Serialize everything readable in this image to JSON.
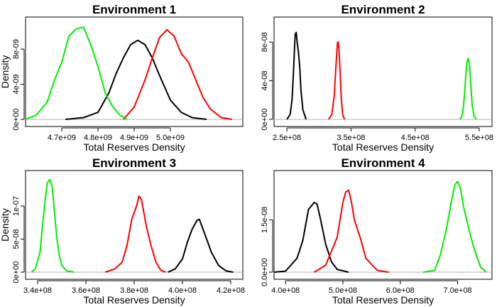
{
  "chart_data": [
    {
      "type": "line",
      "title": "Environment 1",
      "xlabel": "Total Reserves Density",
      "ylabel": "Density",
      "xlim": [
        4600000000.0,
        5200000000.0
      ],
      "ylim": [
        0,
        1.1e-08
      ],
      "xticks": [
        4700000000.0,
        4800000000.0,
        4900000000.0,
        5000000000.0
      ],
      "xtick_labels": [
        "4.7e+09",
        "4.8e+09",
        "4.9e+09",
        "5.0e+09"
      ],
      "yticks": [
        0,
        4e-09,
        8e-09
      ],
      "ytick_labels": [
        "0e+00",
        "4e-09",
        "8e-09"
      ],
      "series": [
        {
          "color": "#000000",
          "x": [
            4710000000.0,
            4760000000.0,
            4800000000.0,
            4830000000.0,
            4850000000.0,
            4870000000.0,
            4890000000.0,
            4910000000.0,
            4930000000.0,
            4950000000.0,
            4970000000.0,
            5000000000.0,
            5030000000.0,
            5060000000.0,
            5100000000.0
          ],
          "y": [
            0,
            2e-10,
            8e-10,
            3e-09,
            5.2e-09,
            7e-09,
            8.5e-09,
            9e-09,
            8.5e-09,
            7e-09,
            5e-09,
            2.2e-09,
            8e-10,
            2e-10,
            0
          ]
        },
        {
          "color": "#ff0000",
          "x": [
            4870000000.0,
            4900000000.0,
            4930000000.0,
            4950000000.0,
            4970000000.0,
            4990000000.0,
            5010000000.0,
            5030000000.0,
            5050000000.0,
            5070000000.0,
            5090000000.0,
            5110000000.0,
            5140000000.0,
            5170000000.0
          ],
          "y": [
            0,
            1.4e-09,
            4.5e-09,
            7e-09,
            9.3e-09,
            1.02e-08,
            9.5e-09,
            7.5e-09,
            6.5e-09,
            4.5e-09,
            2.5e-09,
            1.2e-09,
            2e-10,
            0
          ]
        },
        {
          "color": "#00ee00",
          "x": [
            4600000000.0,
            4630000000.0,
            4660000000.0,
            4680000000.0,
            4700000000.0,
            4720000000.0,
            4740000000.0,
            4760000000.0,
            4780000000.0,
            4800000000.0,
            4820000000.0,
            4840000000.0,
            4860000000.0,
            4880000000.0
          ],
          "y": [
            0,
            5e-10,
            2e-09,
            4.5e-09,
            6.5e-09,
            9.5e-09,
            1.03e-08,
            1.05e-08,
            8.5e-09,
            6e-09,
            3e-09,
            1.5e-09,
            5e-10,
            0
          ]
        }
      ]
    },
    {
      "type": "line",
      "title": "Environment 2",
      "xlabel": "Total Reserves Density",
      "ylabel": "",
      "xlim": [
        230000000.0,
        570000000.0
      ],
      "ylim": [
        0,
        1e-07
      ],
      "xticks": [
        250000000.0,
        350000000.0,
        450000000.0,
        550000000.0
      ],
      "xtick_labels": [
        "2.5e+08",
        "3.5e+08",
        "4.5e+08",
        "5.5e+08"
      ],
      "yticks": [
        0,
        4e-08,
        8e-08
      ],
      "ytick_labels": [
        "0e+00",
        "4e-08",
        "8e-08"
      ],
      "series": [
        {
          "color": "#000000",
          "x": [
            250000000.0,
            255000000.0,
            258000000.0,
            260000000.0,
            262000000.0,
            263000000.0,
            264500000.0,
            266000000.0,
            268000000.0,
            270000000.0,
            272000000.0,
            275000000.0,
            280000000.0
          ],
          "y": [
            0,
            5e-09,
            2e-08,
            4.5e-08,
            7.5e-08,
            8.8e-08,
            9e-08,
            8e-08,
            7e-08,
            5.5e-08,
            3e-08,
            1e-08,
            0
          ]
        },
        {
          "color": "#ff0000",
          "x": [
            315000000.0,
            320000000.0,
            324000000.0,
            326000000.0,
            328000000.0,
            329000000.0,
            330000000.0,
            331000000.0,
            333000000.0,
            335000000.0,
            337000000.0,
            340000000.0
          ],
          "y": [
            0,
            5e-09,
            2.5e-08,
            5e-08,
            7e-08,
            8e-08,
            8e-08,
            7.5e-08,
            5e-08,
            2e-08,
            5e-09,
            0
          ]
        },
        {
          "color": "#00ee00",
          "x": [
            520000000.0,
            524000000.0,
            527000000.0,
            529000000.0,
            531000000.0,
            533000000.0,
            535000000.0,
            537000000.0,
            539000000.0,
            542000000.0,
            546000000.0
          ],
          "y": [
            0,
            5e-09,
            2.5e-08,
            4.5e-08,
            6e-08,
            6.3e-08,
            5.5e-08,
            3.5e-08,
            1.5e-08,
            3e-09,
            0
          ]
        }
      ]
    },
    {
      "type": "line",
      "title": "Environment 3",
      "xlabel": "Total Reserves Density",
      "ylabel": "Density",
      "xlim": [
        335000000.0,
        425000000.0
      ],
      "ylim": [
        0,
        1.45e-07
      ],
      "xticks": [
        340000000.0,
        360000000.0,
        380000000.0,
        400000000.0,
        420000000.0
      ],
      "xtick_labels": [
        "3.4e+08",
        "3.6e+08",
        "3.8e+08",
        "4.0e+08",
        "4.2e+08"
      ],
      "yticks": [
        0,
        5e-08,
        1e-07
      ],
      "ytick_labels": [
        "0e+00",
        "5e-08",
        "1e-07"
      ],
      "series": [
        {
          "color": "#00ee00",
          "x": [
            337500000.0,
            339000000.0,
            341000000.0,
            342000000.0,
            343000000.0,
            344000000.0,
            345000000.0,
            346000000.0,
            347000000.0,
            348000000.0,
            349000000.0,
            350000000.0,
            352000000.0,
            355000000.0
          ],
          "y": [
            0,
            5e-09,
            3e-08,
            7e-08,
            1.05e-07,
            1.35e-07,
            1.4e-07,
            1.3e-07,
            9e-08,
            5e-08,
            2.5e-08,
            1e-08,
            2e-09,
            0
          ]
        },
        {
          "color": "#ff0000",
          "x": [
            368000000.0,
            372000000.0,
            375000000.0,
            377000000.0,
            379000000.0,
            381000000.0,
            382000000.0,
            383000000.0,
            385000000.0,
            387000000.0,
            389000000.0,
            391000000.0,
            393000000.0
          ],
          "y": [
            0,
            5e-09,
            1.5e-08,
            4e-08,
            8e-08,
            1e-07,
            1.15e-07,
            1.1e-07,
            7e-08,
            4e-08,
            1.5e-08,
            3e-09,
            0
          ]
        },
        {
          "color": "#000000",
          "x": [
            394000000.0,
            397000000.0,
            400000000.0,
            402000000.0,
            404000000.0,
            406000000.0,
            407000000.0,
            408000000.0,
            410000000.0,
            412000000.0,
            415000000.0,
            418000000.0,
            421000000.0
          ],
          "y": [
            0,
            5e-09,
            2e-08,
            4.5e-08,
            6.5e-08,
            7.8e-08,
            8e-08,
            7e-08,
            5e-08,
            3e-08,
            1e-08,
            2e-09,
            0
          ]
        }
      ]
    },
    {
      "type": "line",
      "title": "Environment 4",
      "xlabel": "Total Reserves Density",
      "ylabel": "",
      "xlim": [
        380000000.0,
        760000000.0
      ],
      "ylim": [
        0,
        2.75e-08
      ],
      "xticks": [
        400000000.0,
        500000000.0,
        600000000.0,
        700000000.0
      ],
      "xtick_labels": [
        "4.0e+08",
        "5.0e+08",
        "6.0e+08",
        "7.0e+08"
      ],
      "yticks": [
        0,
        1.5e-08
      ],
      "ytick_labels": [
        "0.0e+00",
        "1.5e-08"
      ],
      "series": [
        {
          "color": "#000000",
          "x": [
            380000000.0,
            400000000.0,
            420000000.0,
            430000000.0,
            440000000.0,
            450000000.0,
            455000000.0,
            460000000.0,
            470000000.0,
            480000000.0,
            490000000.0,
            510000000.0
          ],
          "y": [
            0,
            3e-10,
            4e-09,
            9e-09,
            1.8e-08,
            2e-08,
            1.95e-08,
            1.6e-08,
            8e-09,
            3e-09,
            8e-10,
            0
          ]
        },
        {
          "color": "#ff0000",
          "x": [
            450000000.0,
            470000000.0,
            490000000.0,
            500000000.0,
            505000000.0,
            510000000.0,
            515000000.0,
            520000000.0,
            530000000.0,
            540000000.0,
            560000000.0,
            580000000.0
          ],
          "y": [
            0,
            2e-09,
            1e-08,
            2e-08,
            2.3e-08,
            2.35e-08,
            2e-08,
            1.5e-08,
            1e-08,
            4e-09,
            5e-10,
            0
          ]
        },
        {
          "color": "#00ee00",
          "x": [
            640000000.0,
            660000000.0,
            670000000.0,
            680000000.0,
            690000000.0,
            695000000.0,
            700000000.0,
            705000000.0,
            710000000.0,
            720000000.0,
            730000000.0,
            740000000.0,
            750000000.0
          ],
          "y": [
            0,
            5e-10,
            5e-09,
            1.2e-08,
            2.1e-08,
            2.5e-08,
            2.6e-08,
            2.4e-08,
            1.9e-08,
            1.2e-08,
            6e-09,
            1.5e-09,
            0
          ]
        }
      ]
    }
  ]
}
